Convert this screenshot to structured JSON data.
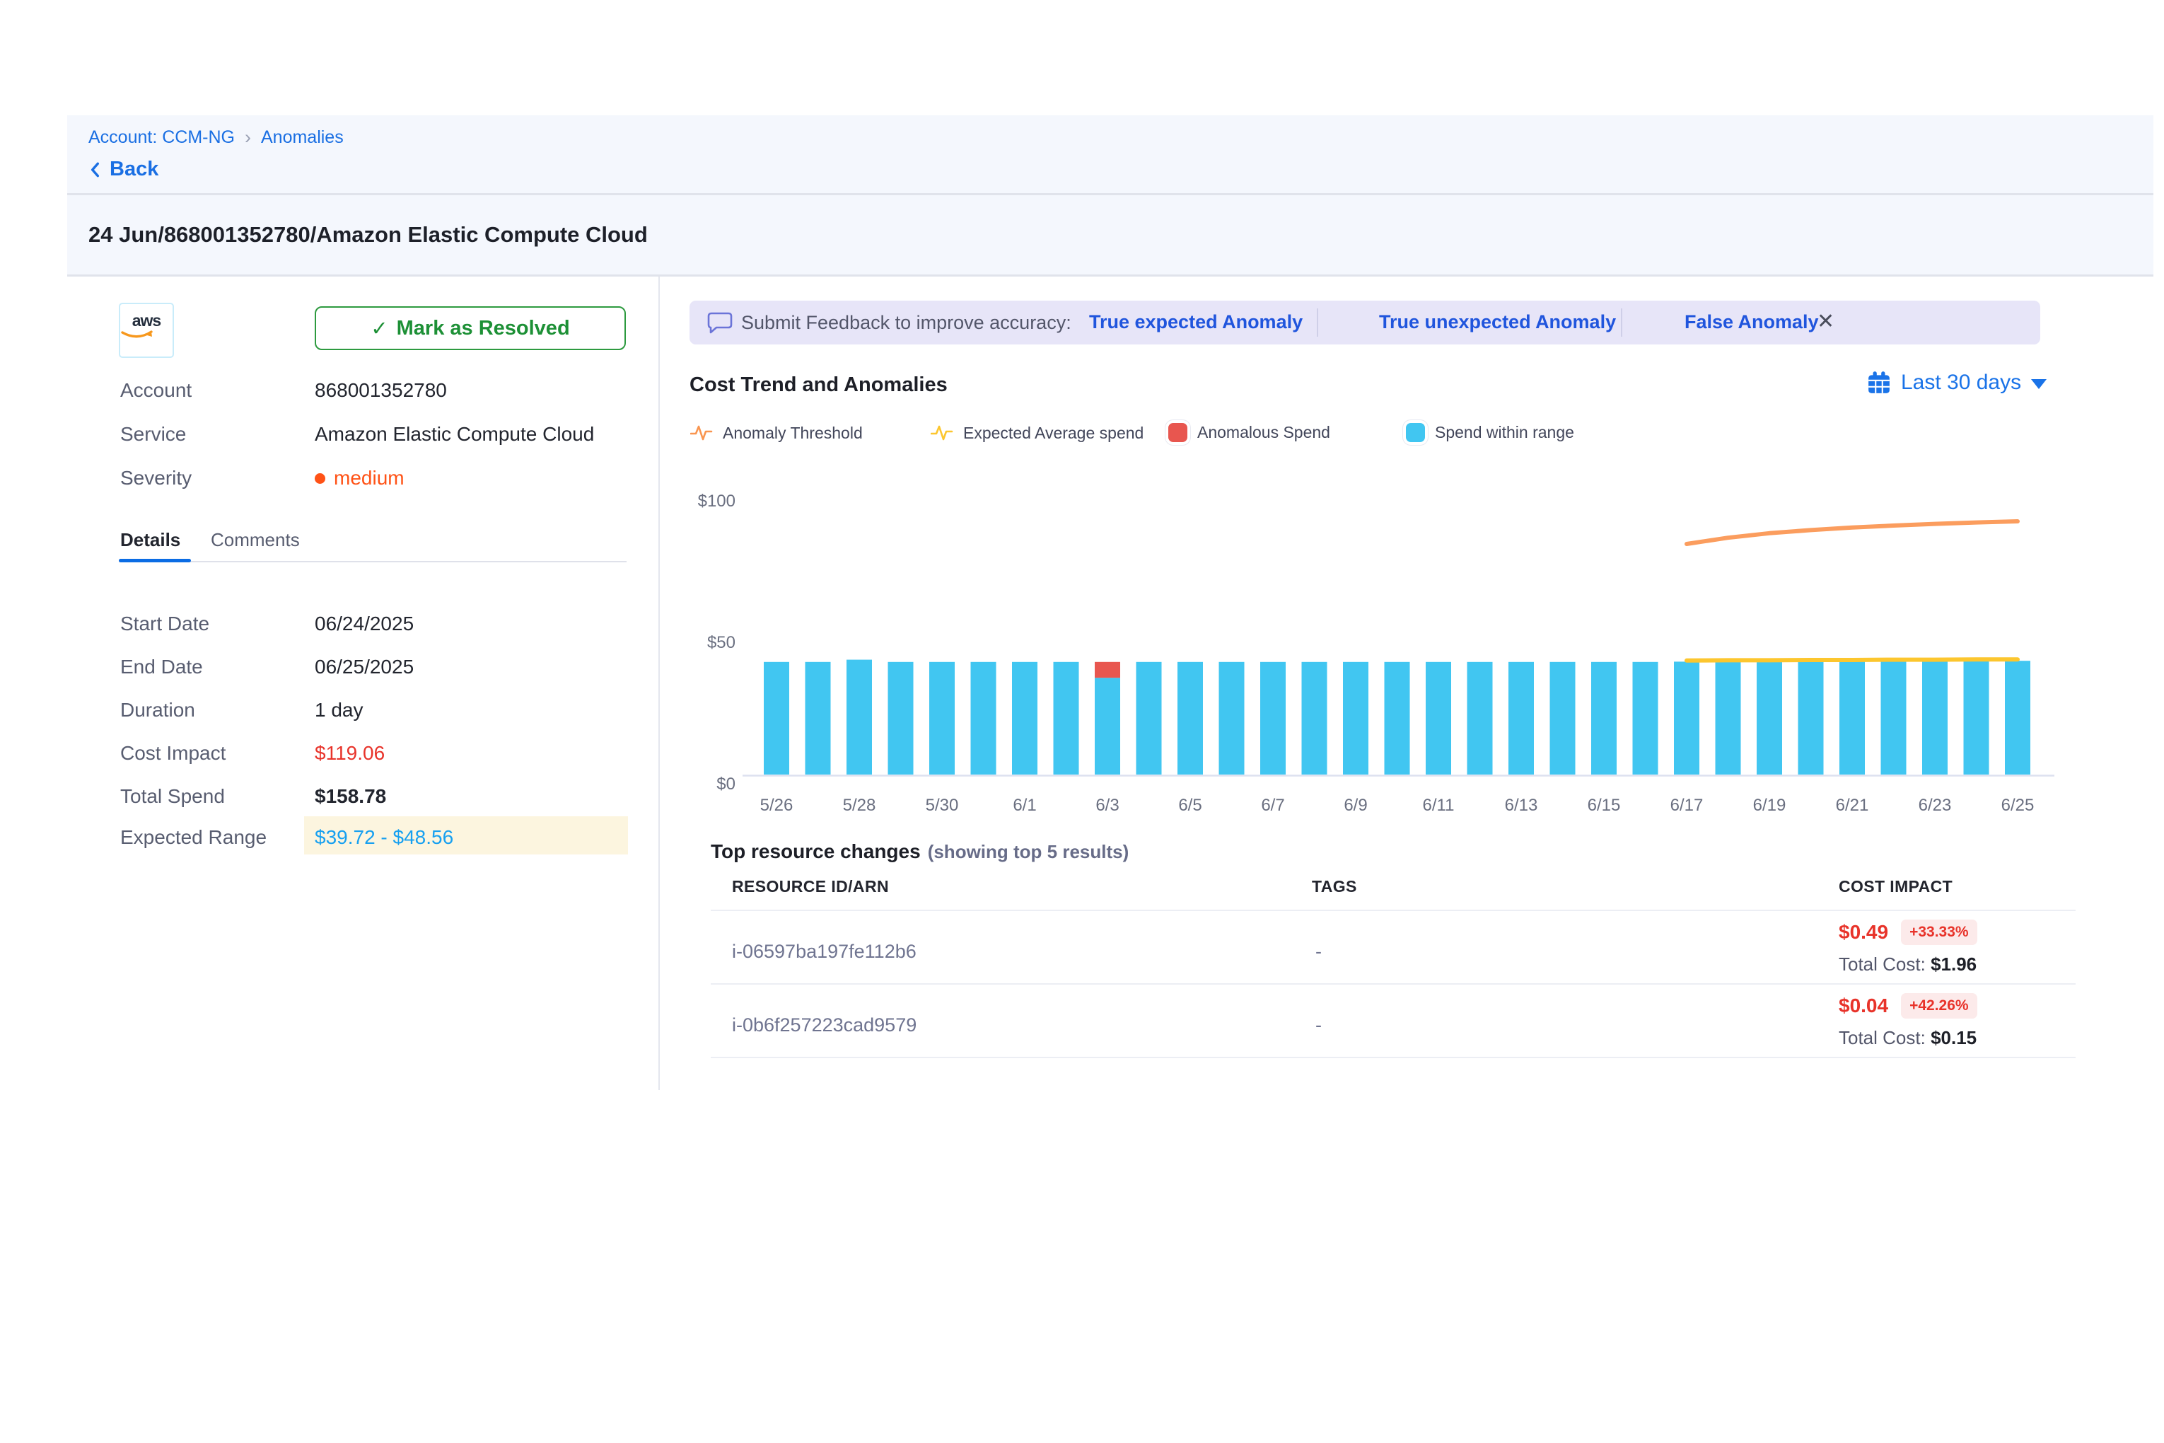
{
  "breadcrumb": {
    "account": "Account: CCM-NG",
    "separator": "›",
    "page": "Anomalies"
  },
  "back_label": "Back",
  "page_title": "24 Jun/868001352780/Amazon Elastic Compute Cloud",
  "left_panel": {
    "provider": "aws",
    "resolve_button": {
      "check": "✓",
      "label": "Mark as Resolved"
    },
    "fields": [
      {
        "label": "Account",
        "value": "868001352780"
      },
      {
        "label": "Service",
        "value": "Amazon Elastic Compute Cloud"
      },
      {
        "label": "Severity",
        "value": "medium"
      }
    ],
    "tabs": [
      {
        "label": "Details",
        "active": true
      },
      {
        "label": "Comments",
        "active": false
      }
    ],
    "details": [
      {
        "label": "Start Date",
        "value": "06/24/2025"
      },
      {
        "label": "End Date",
        "value": "06/25/2025"
      },
      {
        "label": "Duration",
        "value": "1 day"
      },
      {
        "label": "Cost Impact",
        "value": "$119.06"
      },
      {
        "label": "Total Spend",
        "value": "$158.78"
      },
      {
        "label": "Expected Range",
        "value": "$39.72 - $48.56"
      }
    ]
  },
  "feedback_bar": {
    "prompt": "Submit Feedback to improve accuracy:",
    "options": [
      "True expected Anomaly",
      "True unexpected Anomaly",
      "False Anomaly"
    ],
    "close": "✕"
  },
  "chart_header": {
    "title": "Cost Trend and Anomalies",
    "range_label": "Last 30 days"
  },
  "legend": [
    {
      "label": "Anomaly Threshold",
      "icon": "pulse-line",
      "color": "#f9954f"
    },
    {
      "label": "Expected Average spend",
      "icon": "pulse-line",
      "color": "#fcc62e"
    },
    {
      "label": "Anomalous Spend",
      "icon": "square",
      "color": "#e8564f"
    },
    {
      "label": "Spend within range",
      "icon": "square",
      "color": "#41c6f1"
    }
  ],
  "chart_data": {
    "type": "bar",
    "title": "Cost Trend and Anomalies",
    "xlabel": "",
    "ylabel": "",
    "ylim": [
      0,
      100
    ],
    "grid": false,
    "legend_position": "top",
    "y_tick_labels": [
      "$0",
      "$50",
      "$100"
    ],
    "y_tick_values": [
      0,
      50,
      100
    ],
    "x_tick_labels": [
      "5/26",
      "5/28",
      "5/30",
      "6/1",
      "6/3",
      "6/5",
      "6/7",
      "6/9",
      "6/11",
      "6/13",
      "6/15",
      "6/17",
      "6/19",
      "6/21",
      "6/23",
      "6/25"
    ],
    "categories": [
      "5/26",
      "5/27",
      "5/28",
      "5/29",
      "5/30",
      "5/31",
      "6/1",
      "6/2",
      "6/3",
      "6/4",
      "6/5",
      "6/6",
      "6/7",
      "6/8",
      "6/9",
      "6/10",
      "6/11",
      "6/12",
      "6/13",
      "6/14",
      "6/15",
      "6/16",
      "6/17",
      "6/18",
      "6/19",
      "6/20",
      "6/21",
      "6/22",
      "6/23",
      "6/24",
      "6/25"
    ],
    "series": [
      {
        "name": "Spend within range",
        "color": "#41c6f1",
        "values": [
          39.8,
          39.8,
          40.6,
          39.8,
          39.8,
          39.8,
          39.8,
          39.8,
          34.2,
          39.8,
          39.8,
          39.8,
          39.8,
          39.8,
          39.8,
          39.8,
          39.8,
          39.8,
          39.8,
          39.8,
          39.8,
          39.8,
          39.9,
          40.0,
          40.0,
          40.0,
          40.1,
          40.1,
          40.1,
          40.2,
          40.2
        ]
      },
      {
        "name": "Anomalous Spend",
        "color": "#e8564f",
        "values": [
          0,
          0,
          0,
          0,
          0,
          0,
          0,
          0,
          5.6,
          0,
          0,
          0,
          0,
          0,
          0,
          0,
          0,
          0,
          0,
          0,
          0,
          0,
          0,
          0,
          0,
          0,
          0,
          0,
          0,
          0,
          0
        ]
      }
    ],
    "lines": [
      {
        "name": "Anomaly Threshold",
        "color": "#fb9d5e",
        "start_index": 22,
        "values": [
          81.5,
          83.7,
          85.3,
          86.4,
          87.3,
          88.0,
          88.6,
          89.1,
          89.5
        ]
      },
      {
        "name": "Expected Average spend",
        "color": "#fcc62e",
        "start_index": 22,
        "values": [
          40.3,
          40.4,
          40.4,
          40.5,
          40.5,
          40.6,
          40.6,
          40.7,
          40.7
        ]
      }
    ]
  },
  "resources": {
    "title": "Top resource changes",
    "subtitle": "(showing top 5 results)",
    "columns": [
      "RESOURCE ID/ARN",
      "TAGS",
      "COST IMPACT"
    ],
    "rows": [
      {
        "id": "i-06597ba197fe112b6",
        "tags": "-",
        "impact": "$0.49",
        "pct": "+33.33%",
        "total_label": "Total Cost:",
        "total": "$1.96"
      },
      {
        "id": "i-0b6f257223cad9579",
        "tags": "-",
        "impact": "$0.04",
        "pct": "+42.26%",
        "total_label": "Total Cost:",
        "total": "$0.15"
      }
    ]
  },
  "colors": {
    "brand_blue": "#1a6fe3",
    "link_blue": "#2055dd",
    "resolve_green": "#1d9036",
    "severity_orange": "#ff5216",
    "cost_red": "#e8332a",
    "bar_blue": "#41c6f1",
    "anomalous_red": "#e8564f",
    "threshold_orange": "#fb9d5e",
    "average_yellow": "#fcc62e",
    "range_blue": "#17a0f0",
    "range_highlight": "#fcf5df",
    "feedback_bg": "#e7e5f8",
    "band_bg": "#f4f7fd"
  }
}
